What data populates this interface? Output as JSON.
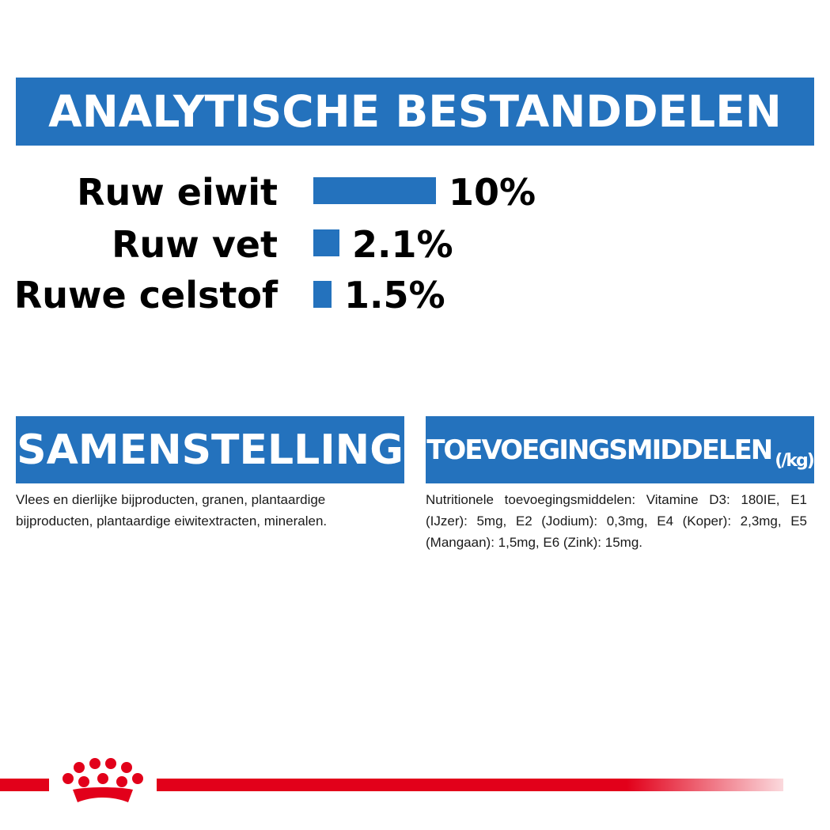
{
  "analytisch": {
    "title": "ANALYTISCHE BESTANDDELEN",
    "items": [
      {
        "label": "Ruw eiwit",
        "value": "10%",
        "amount": 10
      },
      {
        "label": "Ruw vet",
        "value": "2.1%",
        "amount": 2.1
      },
      {
        "label": "Ruwe celstof",
        "value": "1.5%",
        "amount": 1.5
      }
    ]
  },
  "samenstelling": {
    "title": "SAMENSTELLING",
    "text": "Vlees en dierlijke bijproducten, granen, plantaardige bijproducten, plantaardige eiwitextracten, mineralen."
  },
  "toevoeging": {
    "title": "TOEVOEGINGSMIDDELEN",
    "unit": "(/kg)",
    "text": "Nutritionele toevoegingsmiddelen: Vitamine D3: 180IE, E1 (IJzer): 5mg, E2 (Jodium): 0,3mg, E4 (Koper): 2,3mg, E5 (Mangaan): 1,5mg, E6 (Zink): 15mg."
  },
  "colors": {
    "brand_blue": "#2472bd",
    "brand_red": "#e2001a"
  },
  "logo": {
    "icon": "royal-canin-crown-icon"
  }
}
